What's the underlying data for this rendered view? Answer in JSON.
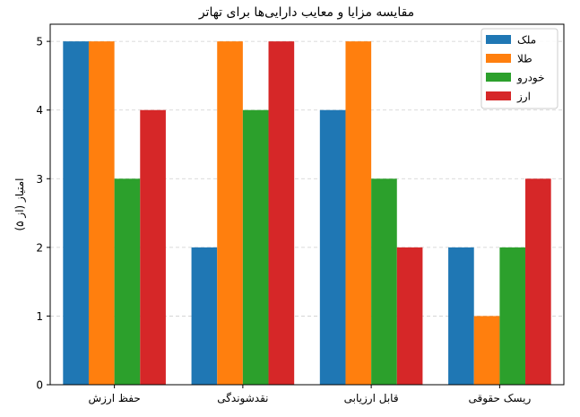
{
  "chart_data": {
    "type": "bar",
    "title": "مقایسه مزایا و معایب دارایی‌ها برای تهاتر",
    "xlabel": "",
    "ylabel": "امتیاز (از ۵)",
    "categories": [
      "حفظ ارزش",
      "نقدشوندگی",
      "قابل ارزیابی",
      "ریسک حقوقی"
    ],
    "series": [
      {
        "name": "ملک",
        "color": "#1f77b4",
        "values": [
          5,
          2,
          4,
          2
        ]
      },
      {
        "name": "طلا",
        "color": "#ff7f0e",
        "values": [
          5,
          5,
          5,
          1
        ]
      },
      {
        "name": "خودرو",
        "color": "#2ca02c",
        "values": [
          3,
          4,
          3,
          2
        ]
      },
      {
        "name": "ارز",
        "color": "#d62728",
        "values": [
          4,
          5,
          2,
          3
        ]
      }
    ],
    "ylim": [
      0,
      5.25
    ],
    "yticks": [
      0,
      1,
      2,
      3,
      4,
      5
    ],
    "grid": "y-dashed",
    "legend": "top-right"
  }
}
